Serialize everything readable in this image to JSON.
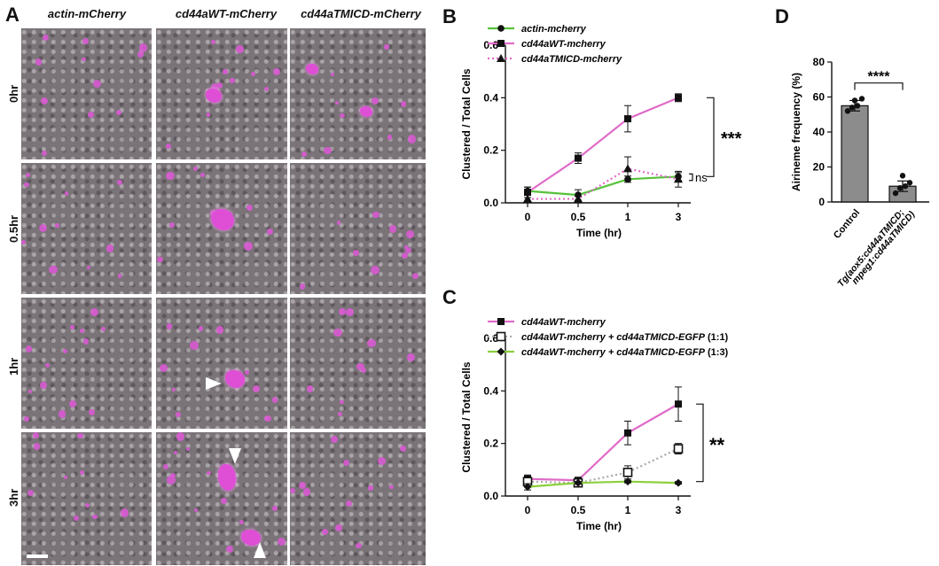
{
  "panels": {
    "A": {
      "letter": "A",
      "columns": [
        "actin-mCherry",
        "cd44aWT-mCherry",
        "cd44aTMICD-mCherry"
      ],
      "rows": [
        "0hr",
        "0.5hr",
        "1hr",
        "3hr"
      ]
    },
    "B": {
      "letter": "B"
    },
    "C": {
      "letter": "C"
    },
    "D": {
      "letter": "D"
    }
  },
  "chart_data": [
    {
      "panel": "B",
      "type": "line",
      "categories": [
        "0",
        "0.5",
        "1",
        "3"
      ],
      "xlabel": "Time (hr)",
      "ylabel": "Clustered / Total Cells",
      "ylim": [
        0,
        0.6
      ],
      "yticks": [
        "0.0",
        "0.2",
        "0.4",
        "0.6"
      ],
      "legend_position": "top-left",
      "series": [
        {
          "name": "actin-mcherry",
          "values": [
            0.045,
            0.03,
            0.09,
            0.1
          ],
          "errors": [
            0.015,
            0.02,
            0.012,
            0.015
          ],
          "color": "#56c23a",
          "marker": "circle",
          "dash": false
        },
        {
          "name": "cd44aWT-mcherry",
          "values": [
            0.04,
            0.17,
            0.32,
            0.4
          ],
          "errors": [
            0.02,
            0.02,
            0.05,
            0.015
          ],
          "color": "#e06ac8",
          "marker": "square",
          "dash": false
        },
        {
          "name": "cd44aTMICD-mcherry",
          "values": [
            0.015,
            0.015,
            0.13,
            0.09
          ],
          "errors": [
            0.015,
            0.01,
            0.045,
            0.03
          ],
          "color": "#e06ac8",
          "marker": "triangle",
          "dash": true
        }
      ],
      "annotations": [
        {
          "text": "***",
          "between": [
            "cd44aWT-mcherry",
            "actin-mcherry"
          ]
        },
        {
          "text": "ns",
          "between": [
            "cd44aTMICD-mcherry",
            "actin-mcherry"
          ]
        }
      ]
    },
    {
      "panel": "C",
      "type": "line",
      "categories": [
        "0",
        "0.5",
        "1",
        "3"
      ],
      "xlabel": "Time (hr)",
      "ylabel": "Clustered / Total Cells",
      "ylim": [
        0,
        0.6
      ],
      "yticks": [
        "0.0",
        "0.2",
        "0.4",
        "0.6"
      ],
      "legend_position": "top-left",
      "series": [
        {
          "name": "cd44aWT-mcherry",
          "values": [
            0.065,
            0.06,
            0.24,
            0.35
          ],
          "errors": [
            0.015,
            0.01,
            0.045,
            0.065
          ],
          "color": "#e06ac8",
          "marker": "square",
          "dash": false
        },
        {
          "name": "cd44aWT-mcherry + cd44aTMICD-EGFP",
          "suffix": "(1:1)",
          "values": [
            0.055,
            0.05,
            0.09,
            0.18
          ],
          "errors": [
            0.01,
            0.005,
            0.025,
            0.02
          ],
          "color": "#aaaaaa",
          "marker": "open-square",
          "dash": true
        },
        {
          "name": "cd44aWT-mcherry + cd44aTMICD-EGFP",
          "suffix": "(1:3)",
          "values": [
            0.035,
            0.05,
            0.055,
            0.05
          ],
          "errors": [
            0.012,
            0.005,
            0.005,
            0.005
          ],
          "color": "#8ccf3c",
          "marker": "diamond",
          "dash": false
        }
      ],
      "annotations": [
        {
          "text": "**"
        }
      ]
    },
    {
      "panel": "D",
      "type": "bar",
      "categories": [
        "Control",
        "Tg(aox5:cd44aTMICD; mpeg1:cd44aTMICD)"
      ],
      "ylabel": "Airineme frequency (%)",
      "ylim": [
        0,
        80
      ],
      "yticks": [
        "0",
        "20",
        "40",
        "60",
        "80"
      ],
      "values": [
        55,
        9
      ],
      "errors": [
        3,
        3
      ],
      "points": [
        [
          52,
          54,
          55,
          59,
          58
        ],
        [
          5,
          8,
          9,
          11,
          15
        ]
      ],
      "annotations": [
        {
          "text": "****"
        }
      ]
    }
  ]
}
